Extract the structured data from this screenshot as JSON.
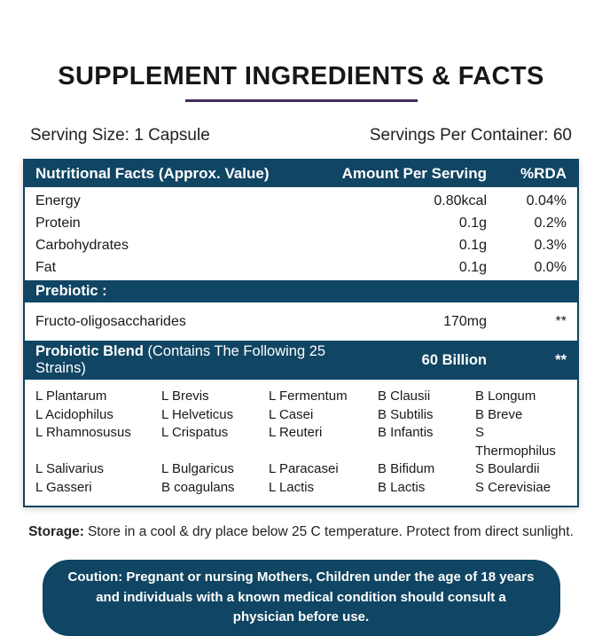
{
  "colors": {
    "accent_blue": "#104563",
    "underline_purple": "#432a5e",
    "background": "#ffffff"
  },
  "title": {
    "text": "SUPPLEMENT INGREDIENTS & FACTS"
  },
  "serving": {
    "size": "Serving Size: 1 Capsule",
    "per_container": "Servings Per Container: 60"
  },
  "table": {
    "header": {
      "name": "Nutritional Facts (Approx. Value)",
      "amount": "Amount Per Serving",
      "rda": "%RDA"
    },
    "nutrients": [
      {
        "name": "Energy",
        "amount": "0.80kcal",
        "rda": "0.04%"
      },
      {
        "name": "Protein",
        "amount": "0.1g",
        "rda": "0.2%"
      },
      {
        "name": "Carbohydrates",
        "amount": "0.1g",
        "rda": "0.3%"
      },
      {
        "name": "Fat",
        "amount": "0.1g",
        "rda": "0.0%"
      }
    ],
    "prebiotic": {
      "header": "Prebiotic :",
      "row": {
        "name": "Fructo-oligosaccharides",
        "amount": "170mg",
        "rda": "**"
      }
    },
    "probiotic": {
      "title_bold": "Probiotic Blend ",
      "title_rest": "(Contains The Following 25  Strains)",
      "amount": "60 Billion",
      "rda": "**",
      "strain_columns": [
        [
          "L Plantarum",
          "L Acidophilus",
          "L Rhamnosusus",
          "L Salivarius",
          "L Gasseri"
        ],
        [
          "L Brevis",
          "L Helveticus",
          "L Crispatus",
          "L Bulgaricus",
          "B coagulans"
        ],
        [
          "L Fermentum",
          "L Casei",
          "L Reuteri",
          "L Paracasei",
          "L Lactis"
        ],
        [
          "B Clausii",
          "B Subtilis",
          "B Infantis",
          "B Bifidum",
          "B Lactis"
        ],
        [
          "B Longum",
          "B Breve",
          "S Thermophilus",
          "S Boulardii",
          "S Cerevisiae"
        ]
      ]
    }
  },
  "storage": {
    "label": "Storage:",
    "text": "Store in a cool & dry place below 25 C temperature. Protect from direct sunlight."
  },
  "caution": {
    "text": "Coution: Pregnant or nursing Mothers, Children under the age of 18 years and individuals with a known medical condition should consult a physician before use."
  }
}
